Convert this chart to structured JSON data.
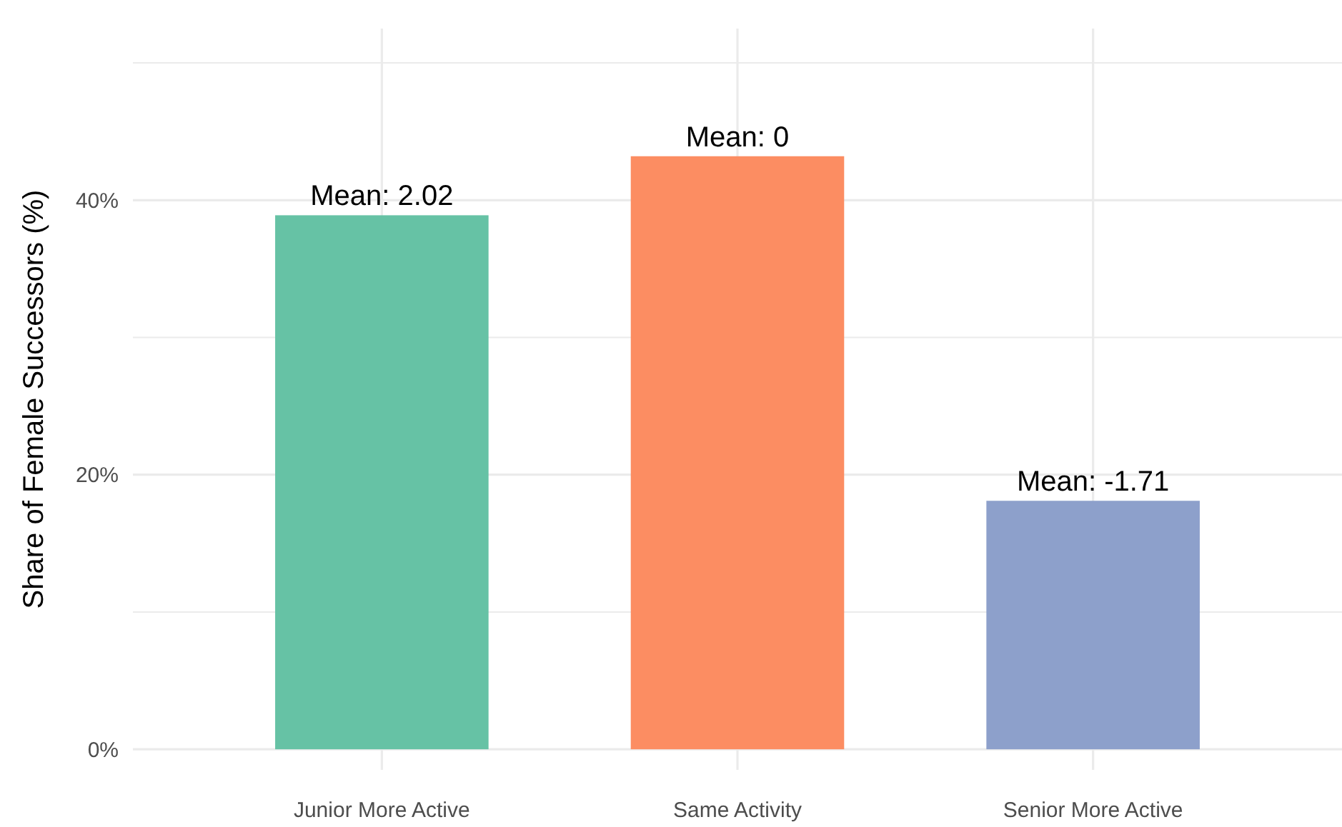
{
  "chart_data": {
    "type": "bar",
    "ylabel": "Share of Female Successors (%)",
    "categories": [
      "Junior More Active",
      "Same Activity",
      "Senior More Active"
    ],
    "values": [
      38.9,
      43.2,
      18.1
    ],
    "colors": [
      "#66c2a5",
      "#fc8d62",
      "#8da0cb"
    ],
    "ylim": [
      -1.5,
      52.5
    ],
    "yticks": [
      {
        "value": 0,
        "label": "0%"
      },
      {
        "value": 10,
        "label": null
      },
      {
        "value": 20,
        "label": "20%"
      },
      {
        "value": 30,
        "label": null
      },
      {
        "value": 40,
        "label": "40%"
      },
      {
        "value": 50,
        "label": null
      }
    ],
    "grid": true,
    "annotations": [
      {
        "text": "Mean: 2.02",
        "x": "Junior More Active",
        "y": 38.9
      },
      {
        "text": "Mean: 0",
        "x": "Same Activity",
        "y": 43.2
      },
      {
        "text": "Mean: -1.71",
        "x": "Senior More Active",
        "y": 18.1
      }
    ]
  }
}
